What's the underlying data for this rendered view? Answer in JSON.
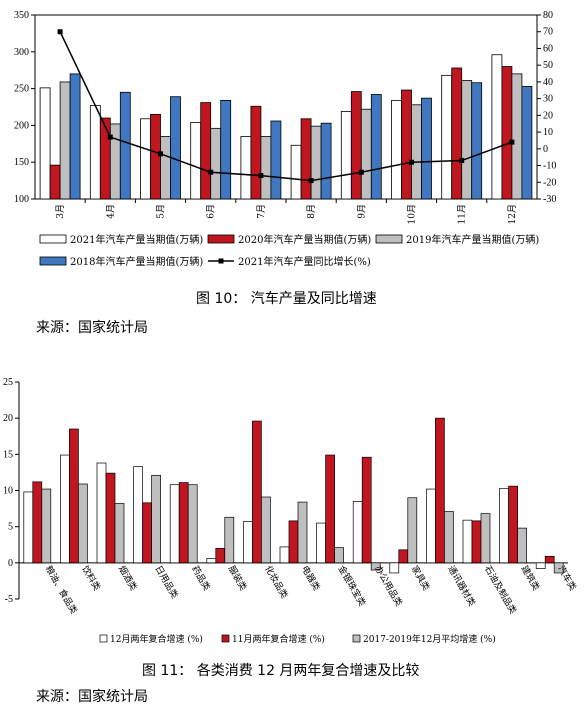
{
  "chart_data": [
    {
      "type": "bar",
      "categories": [
        "3月",
        "4月",
        "5月",
        "6月",
        "7月",
        "8月",
        "9月",
        "10月",
        "11月",
        "12月"
      ],
      "series": [
        {
          "name": "2021年汽车产量当期值(万辆)",
          "color": "#ffffff",
          "values": [
            251,
            227,
            209,
            204,
            185,
            173,
            219,
            234,
            268,
            296
          ]
        },
        {
          "name": "2020年汽车产量当期值(万辆)",
          "color": "#c0161f",
          "values": [
            146,
            210,
            215,
            231,
            226,
            209,
            246,
            248,
            278,
            280
          ]
        },
        {
          "name": "2019年汽车产量当期值(万辆)",
          "color": "#bfbfbf",
          "values": [
            259,
            202,
            185,
            196,
            185,
            199,
            222,
            228,
            261,
            270
          ]
        },
        {
          "name": "2018年汽车产量当期值(万辆)",
          "color": "#3f78c0",
          "values": [
            270,
            245,
            239,
            234,
            206,
            203,
            242,
            237,
            258,
            253
          ]
        }
      ],
      "line_series": {
        "name": "2021年汽车产量同比增长(%)",
        "color": "#000000",
        "values": [
          70,
          7,
          -3,
          -14,
          -16,
          -19,
          -14,
          -8,
          -7,
          4
        ]
      },
      "ylim": [
        100,
        350
      ],
      "yticks": [
        100,
        150,
        200,
        250,
        300,
        350
      ],
      "y2lim": [
        -30,
        80
      ],
      "y2ticks": [
        -30,
        -20,
        -10,
        0,
        10,
        20,
        30,
        40,
        50,
        60,
        70,
        80
      ]
    },
    {
      "type": "bar",
      "categories": [
        "粮油、食品类",
        "饮料类",
        "烟酒类",
        "日用品类",
        "药品类",
        "服装类",
        "化妆品类",
        "电器类",
        "金银珠宝类",
        "办公用品类",
        "家具类",
        "通讯器材类",
        "石油及制品类",
        "建筑类",
        "汽车类"
      ],
      "series": [
        {
          "name": "12月两年复合增速 (%)",
          "color": "#ffffff",
          "values": [
            9.8,
            14.9,
            13.8,
            13.3,
            10.8,
            0.6,
            5.7,
            2.2,
            5.5,
            8.5,
            -1.4,
            10.2,
            5.9,
            10.3,
            -0.8
          ]
        },
        {
          "name": "11月两年复合增速 (%)",
          "color": "#c0161f",
          "values": [
            11.2,
            18.5,
            12.4,
            8.3,
            11.1,
            2.0,
            19.6,
            5.8,
            14.9,
            14.6,
            1.8,
            20.0,
            5.8,
            10.6,
            0.9
          ]
        },
        {
          "name": "2017-2019年12月平均增速 (%)",
          "color": "#bfbfbf",
          "values": [
            10.2,
            10.9,
            8.2,
            12.1,
            10.8,
            6.3,
            9.1,
            8.4,
            2.1,
            -1.0,
            9.0,
            7.1,
            6.8,
            4.8,
            -1.4
          ]
        }
      ],
      "ylim": [
        -5,
        25
      ],
      "yticks": [
        -5,
        0,
        5,
        10,
        15,
        20,
        25
      ]
    }
  ],
  "captions": {
    "fig10": "图 10：  汽车产量及同比增速",
    "fig11": "图 11：  各类消费 12 月两年复合增速及比较",
    "source1": "来源：国家统计局",
    "source2": "来源：国家统计局"
  }
}
